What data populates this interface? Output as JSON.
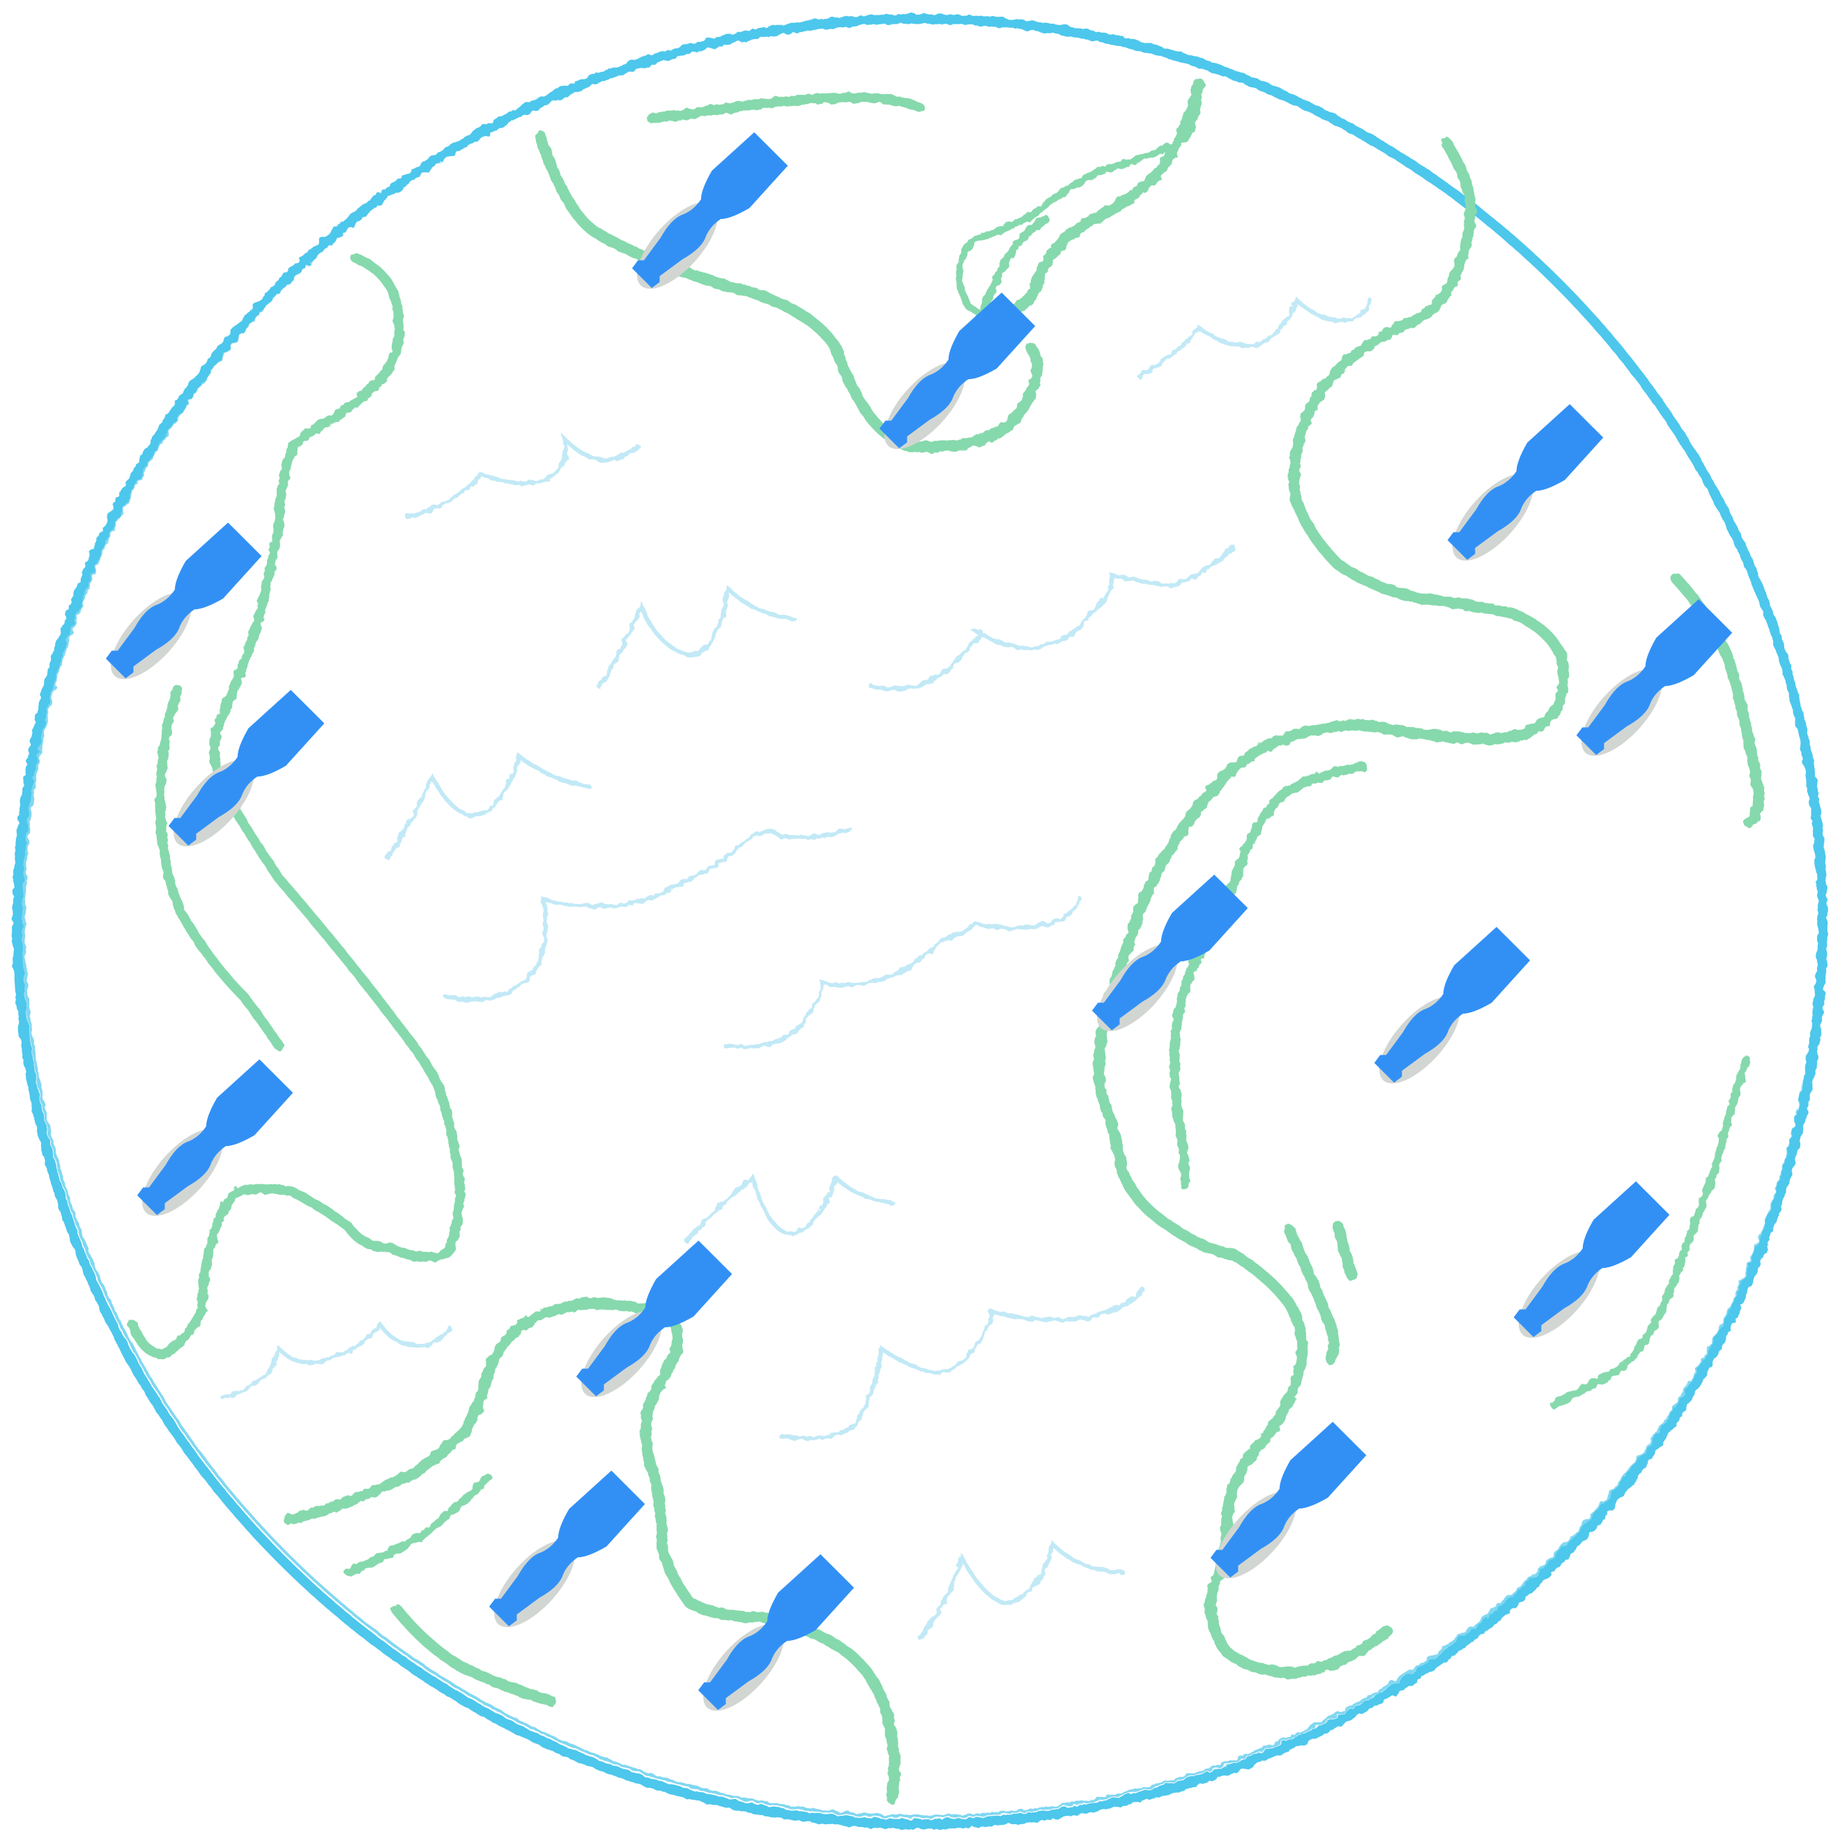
{
  "colors": {
    "background": "#ffffff",
    "ring": "#4ec7ec",
    "seaweed": "#86d9ac",
    "waves": "#c2e9f6",
    "bottle": "#3290f5",
    "bottle_shadow": "#d2d6d2"
  },
  "elements": {
    "ring": "circle-outline",
    "bottle": "bottle-icon",
    "shadow": "shadow-icon",
    "seaweed": "seaweed-strand",
    "wave": "wave-line"
  }
}
